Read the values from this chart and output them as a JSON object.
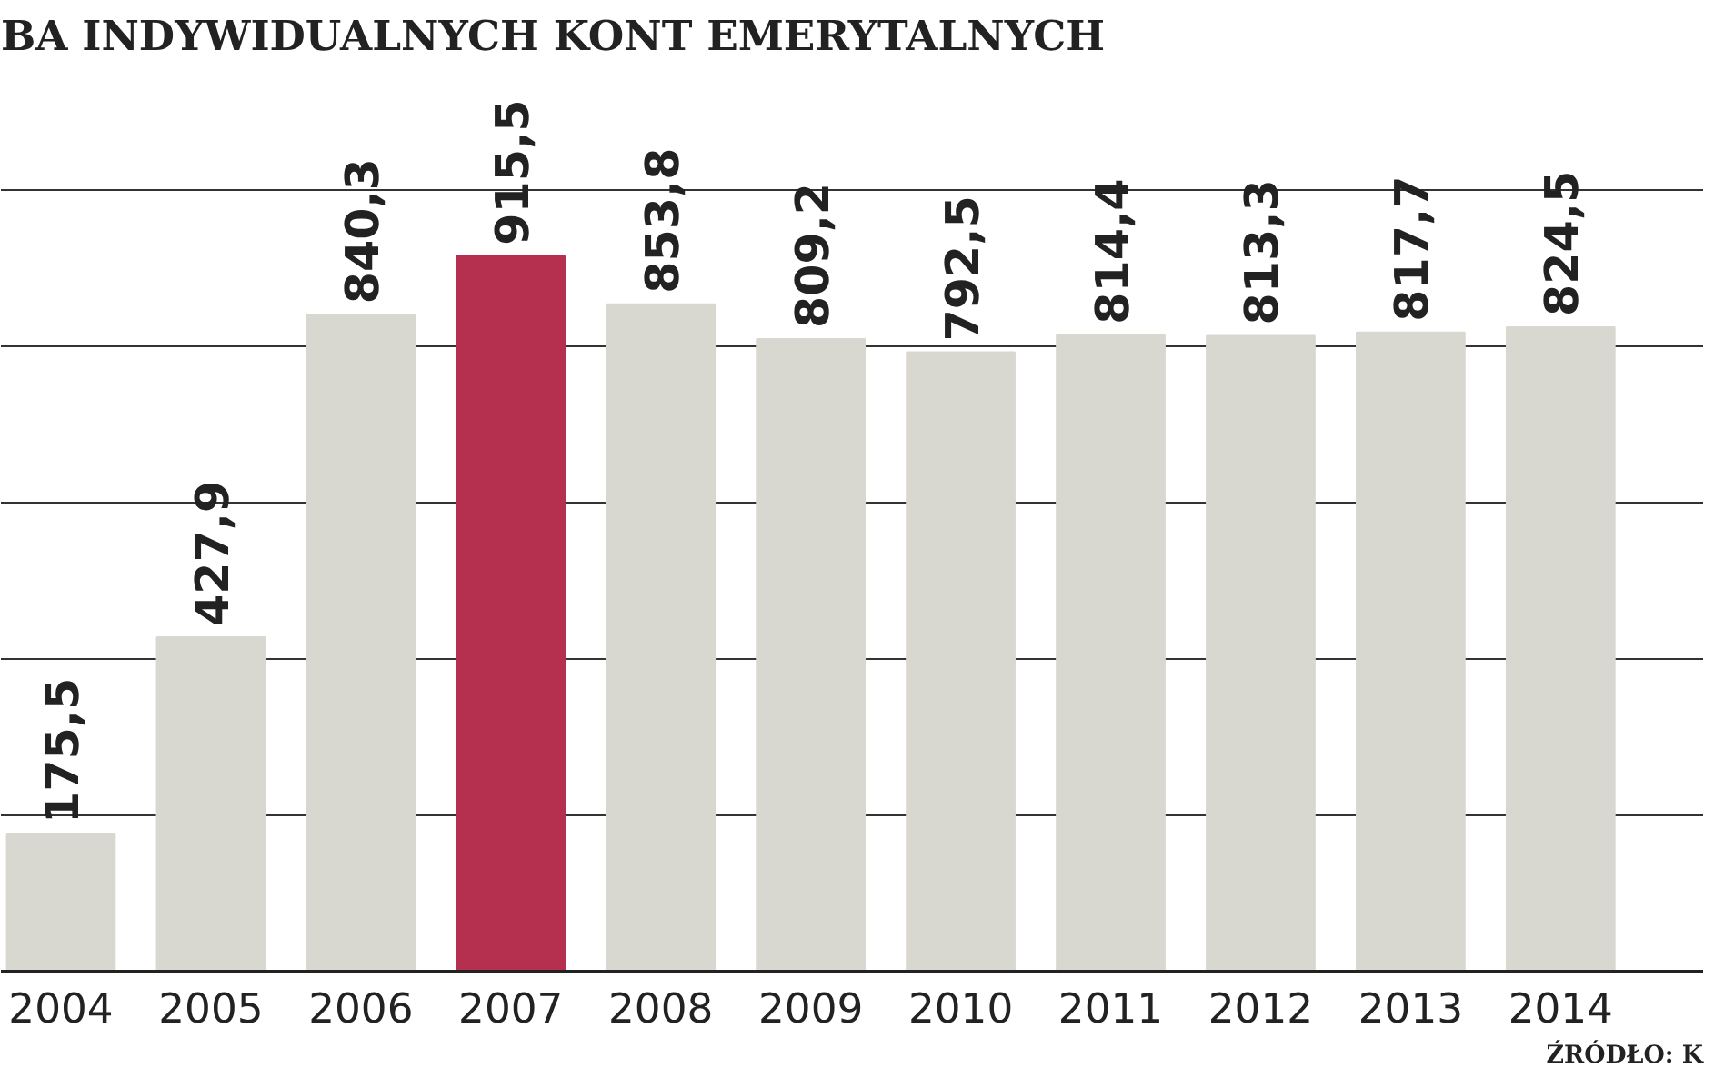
{
  "chart_data": {
    "type": "bar",
    "title": "BA INDYWIDUALNYCH KONT EMERYTALNYCH",
    "categories": [
      "2004",
      "2005",
      "2006",
      "2007",
      "2008",
      "2009",
      "2010",
      "2011",
      "2012",
      "2013",
      "2014"
    ],
    "values": [
      175.5,
      427.9,
      840.3,
      915.5,
      853.8,
      809.2,
      792.5,
      814.4,
      813.3,
      817.7,
      824.5
    ],
    "colors": [
      "#d9d8d0",
      "#d9d8d0",
      "#d9d8d0",
      "#b5304f",
      "#d9d8d0",
      "#d9d8d0",
      "#d9d8d0",
      "#d9d8d0",
      "#d9d8d0",
      "#d9d8d0",
      "#d9d8d0"
    ],
    "value_labels": [
      "175,5",
      "427,9",
      "840,3",
      "915,5",
      "853,8",
      "809,2",
      "792,5",
      "814,4",
      "813,3",
      "817,7",
      "824,5"
    ],
    "yticks": [
      {
        "value": 200,
        "label": null
      },
      {
        "value": 400,
        "label": null
      },
      {
        "value": 600,
        "label": null
      },
      {
        "value": 800,
        "label": null
      },
      {
        "value": 1000,
        "label": null
      }
    ],
    "grid": "y",
    "tick_labels": "x",
    "annotations": [
      "ŹRÓDŁO: K"
    ]
  }
}
